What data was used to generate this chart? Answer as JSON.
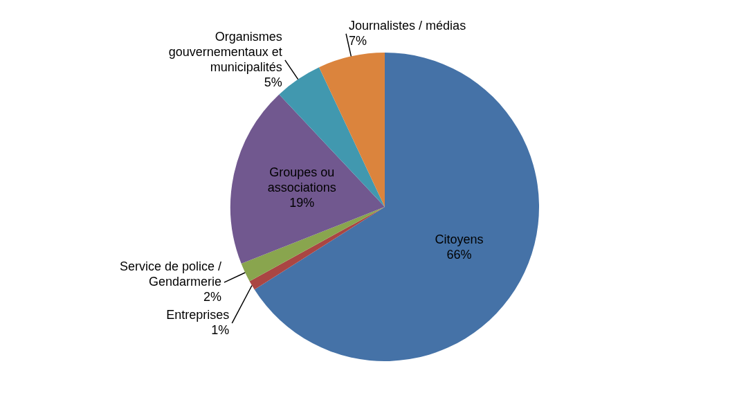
{
  "chart_data": {
    "type": "pie",
    "categories": [
      "Citoyens",
      "Entreprises",
      "Service de police / Gendarmerie",
      "Groupes ou associations",
      "Organismes gouvernementaux et municipalités",
      "Journalistes / médias"
    ],
    "values": [
      66,
      1,
      2,
      19,
      5,
      7
    ],
    "value_labels": [
      "66%",
      "1%",
      "2%",
      "19%",
      "5%",
      "7%"
    ],
    "colors": [
      "#4572a7",
      "#aa4643",
      "#89a54e",
      "#71588f",
      "#4198af",
      "#db843d"
    ],
    "legend": false
  }
}
